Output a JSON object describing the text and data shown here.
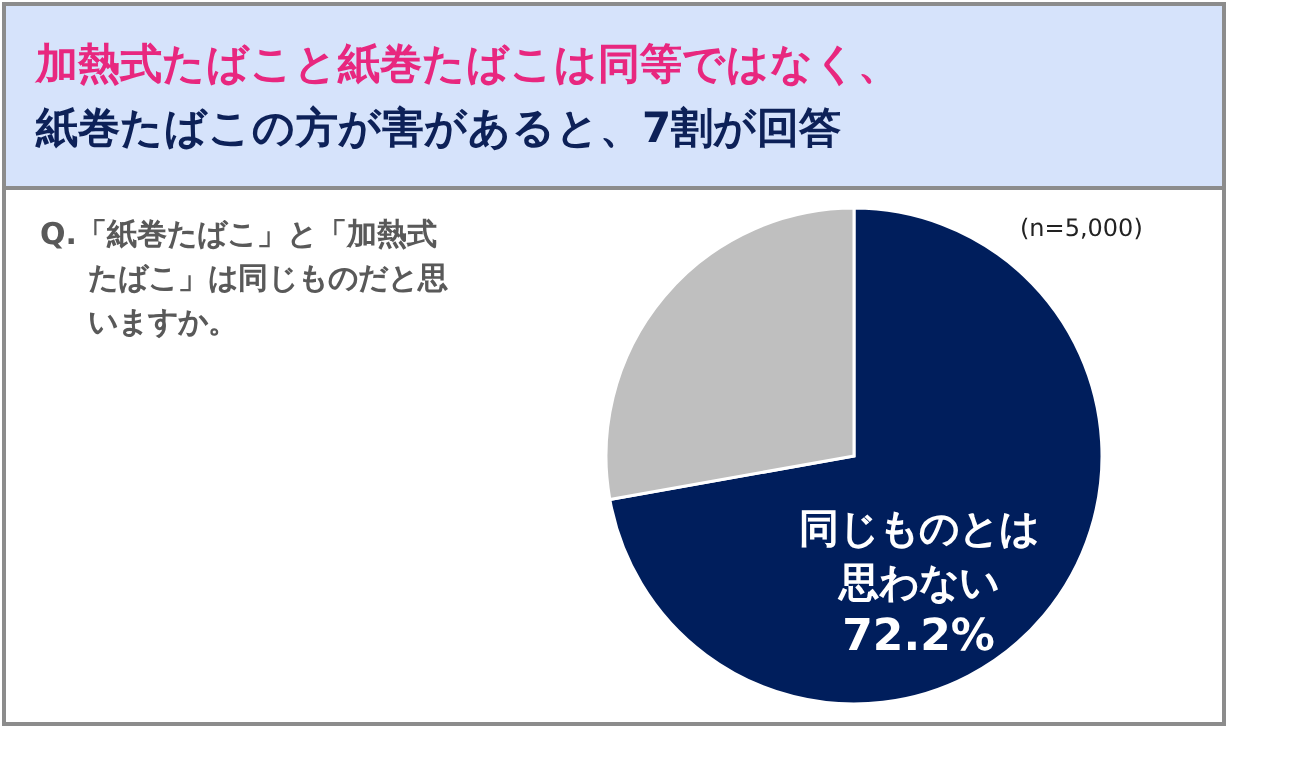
{
  "chart_data": {
    "type": "pie",
    "title": "加熱式たばこと紙巻たばこは同等ではなく、",
    "subtitle": "紙巻たばこの方が害があると、7割が回答",
    "categories": [
      "同じものとは思わない",
      null
    ],
    "values": [
      72.2,
      27.8
    ],
    "colors": [
      "#001e5c",
      "#bfbfbf"
    ],
    "value_labels": [
      "72.2%",
      null
    ],
    "annotations": [
      "Q.「紙巻たばこ」と「加熱式たばこ」は同じものだと思いますか。",
      "(n=5,000)"
    ]
  }
}
